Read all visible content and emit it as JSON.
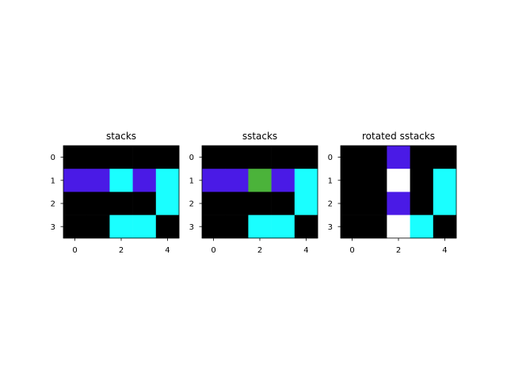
{
  "chart_data": [
    {
      "type": "heatmap",
      "title": "stacks",
      "xticks": [
        "0",
        "2",
        "4"
      ],
      "yticks": [
        "0",
        "1",
        "2",
        "3"
      ],
      "x_range": [
        -0.5,
        4.5
      ],
      "y_range": [
        -0.5,
        3.5
      ],
      "grid": [
        [
          "black",
          "black",
          "black",
          "black",
          "black"
        ],
        [
          "blue",
          "blue",
          "cyan",
          "blue",
          "cyan"
        ],
        [
          "black",
          "black",
          "black",
          "black",
          "cyan"
        ],
        [
          "black",
          "black",
          "cyan",
          "cyan",
          "black"
        ]
      ]
    },
    {
      "type": "heatmap",
      "title": "sstacks",
      "xticks": [
        "0",
        "2",
        "4"
      ],
      "yticks": [
        "0",
        "1",
        "2",
        "3"
      ],
      "x_range": [
        -0.5,
        4.5
      ],
      "y_range": [
        -0.5,
        3.5
      ],
      "grid": [
        [
          "black",
          "black",
          "black",
          "black",
          "black"
        ],
        [
          "blue",
          "blue",
          "green",
          "blue",
          "cyan"
        ],
        [
          "black",
          "black",
          "black",
          "black",
          "cyan"
        ],
        [
          "black",
          "black",
          "cyan",
          "cyan",
          "black"
        ]
      ]
    },
    {
      "type": "heatmap",
      "title": "rotated sstacks",
      "xticks": [
        "0",
        "2",
        "4"
      ],
      "yticks": [
        "0",
        "1",
        "2",
        "3"
      ],
      "x_range": [
        -0.5,
        4.5
      ],
      "y_range": [
        -0.5,
        3.5
      ],
      "grid": [
        [
          "black",
          "black",
          "blue",
          "black",
          "black"
        ],
        [
          "black",
          "black",
          "white",
          "black",
          "cyan"
        ],
        [
          "black",
          "black",
          "blue",
          "black",
          "cyan"
        ],
        [
          "black",
          "black",
          "white",
          "cyan",
          "black"
        ]
      ]
    }
  ],
  "colors": {
    "black": "#000000",
    "blue": "#4a1ae6",
    "cyan": "#1affff",
    "green": "#4bb33a",
    "white": "#ffffff"
  }
}
